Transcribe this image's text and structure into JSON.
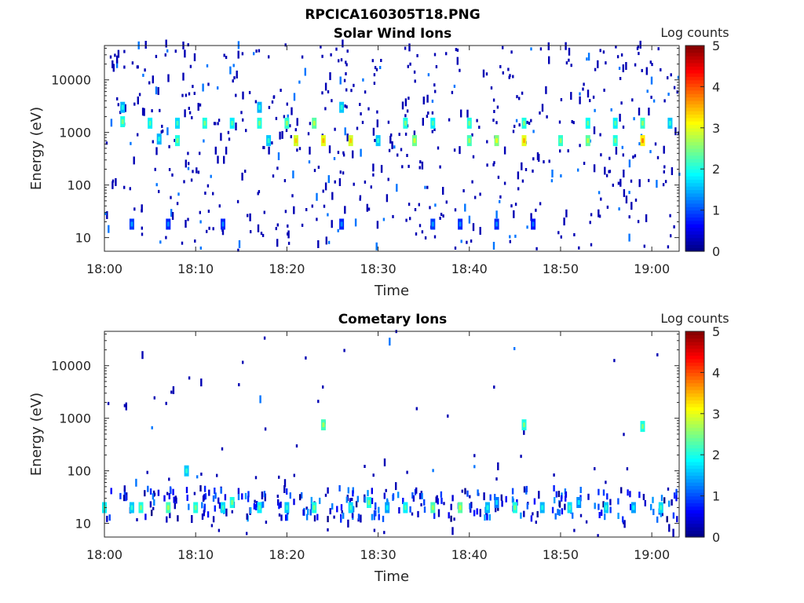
{
  "figure": {
    "title": "RPCICA160305T18.PNG"
  },
  "chart_data": [
    {
      "type": "heatmap",
      "title": "Solar Wind Ions",
      "xlabel": "Time",
      "ylabel": "Energy (eV)",
      "x_ticks": [
        "18:00",
        "18:10",
        "18:20",
        "18:30",
        "18:40",
        "18:50",
        "19:00"
      ],
      "y_ticks": [
        "10",
        "100",
        "1000",
        "10000"
      ],
      "y_scale": "log",
      "xlim": [
        "18:00",
        "19:03"
      ],
      "ylim": [
        5.5,
        45000
      ],
      "colorbar": {
        "label": "Log counts",
        "ticks": [
          "0",
          "1",
          "2",
          "3",
          "4",
          "5"
        ],
        "range": [
          0,
          5
        ],
        "colormap": "jet"
      },
      "hot_spots": [
        {
          "t": "18:02",
          "e": 1600,
          "v": 2.0
        },
        {
          "t": "18:02",
          "e": 3000,
          "v": 1.5
        },
        {
          "t": "18:05",
          "e": 1500,
          "v": 1.8
        },
        {
          "t": "18:06",
          "e": 750,
          "v": 1.5
        },
        {
          "t": "18:08",
          "e": 1500,
          "v": 1.7
        },
        {
          "t": "18:08",
          "e": 700,
          "v": 2.0
        },
        {
          "t": "18:11",
          "e": 1500,
          "v": 2.0
        },
        {
          "t": "18:14",
          "e": 1500,
          "v": 1.8
        },
        {
          "t": "18:17",
          "e": 1500,
          "v": 2.0
        },
        {
          "t": "18:17",
          "e": 3000,
          "v": 1.5
        },
        {
          "t": "18:18",
          "e": 700,
          "v": 1.6
        },
        {
          "t": "18:20",
          "e": 1500,
          "v": 2.1
        },
        {
          "t": "18:21",
          "e": 700,
          "v": 2.9
        },
        {
          "t": "18:23",
          "e": 1500,
          "v": 2.3
        },
        {
          "t": "18:24",
          "e": 700,
          "v": 3.0
        },
        {
          "t": "18:26",
          "e": 3000,
          "v": 1.6
        },
        {
          "t": "18:27",
          "e": 700,
          "v": 2.9
        },
        {
          "t": "18:30",
          "e": 700,
          "v": 1.6
        },
        {
          "t": "18:33",
          "e": 1500,
          "v": 2.0
        },
        {
          "t": "18:34",
          "e": 700,
          "v": 2.4
        },
        {
          "t": "18:36",
          "e": 1500,
          "v": 1.8
        },
        {
          "t": "18:40",
          "e": 1500,
          "v": 2.0
        },
        {
          "t": "18:40",
          "e": 700,
          "v": 2.2
        },
        {
          "t": "18:43",
          "e": 700,
          "v": 2.5
        },
        {
          "t": "18:46",
          "e": 1500,
          "v": 2.0
        },
        {
          "t": "18:46",
          "e": 700,
          "v": 3.0
        },
        {
          "t": "18:50",
          "e": 700,
          "v": 2.1
        },
        {
          "t": "18:53",
          "e": 1500,
          "v": 1.9
        },
        {
          "t": "18:53",
          "e": 700,
          "v": 2.3
        },
        {
          "t": "18:56",
          "e": 1500,
          "v": 1.8
        },
        {
          "t": "18:56",
          "e": 700,
          "v": 2.0
        },
        {
          "t": "18:59",
          "e": 1500,
          "v": 2.1
        },
        {
          "t": "18:59",
          "e": 700,
          "v": 3.2
        },
        {
          "t": "19:02",
          "e": 1500,
          "v": 1.6
        },
        {
          "t": "18:03",
          "e": 18,
          "v": 0.9
        },
        {
          "t": "18:07",
          "e": 18,
          "v": 0.8
        },
        {
          "t": "18:13",
          "e": 18,
          "v": 0.8
        },
        {
          "t": "18:26",
          "e": 18,
          "v": 0.8
        },
        {
          "t": "18:36",
          "e": 18,
          "v": 0.9
        },
        {
          "t": "18:39",
          "e": 18,
          "v": 0.8
        },
        {
          "t": "18:43",
          "e": 18,
          "v": 0.8
        },
        {
          "t": "18:47",
          "e": 18,
          "v": 0.7
        }
      ]
    },
    {
      "type": "heatmap",
      "title": "Cometary Ions",
      "xlabel": "Time",
      "ylabel": "Energy (eV)",
      "x_ticks": [
        "18:00",
        "18:10",
        "18:20",
        "18:30",
        "18:40",
        "18:50",
        "19:00"
      ],
      "y_ticks": [
        "10",
        "100",
        "1000",
        "10000"
      ],
      "y_scale": "log",
      "xlim": [
        "18:00",
        "19:03"
      ],
      "ylim": [
        5.5,
        45000
      ],
      "colorbar": {
        "label": "Log counts",
        "ticks": [
          "0",
          "1",
          "2",
          "3",
          "4",
          "5"
        ],
        "range": [
          0,
          5
        ],
        "colormap": "jet"
      },
      "hot_spots": [
        {
          "t": "18:00",
          "e": 20,
          "v": 1.8
        },
        {
          "t": "18:03",
          "e": 20,
          "v": 1.6
        },
        {
          "t": "18:04",
          "e": 20,
          "v": 2.0
        },
        {
          "t": "18:07",
          "e": 20,
          "v": 2.2
        },
        {
          "t": "18:10",
          "e": 20,
          "v": 2.0
        },
        {
          "t": "18:13",
          "e": 20,
          "v": 1.7
        },
        {
          "t": "18:14",
          "e": 25,
          "v": 2.0
        },
        {
          "t": "18:17",
          "e": 20,
          "v": 1.8
        },
        {
          "t": "18:20",
          "e": 20,
          "v": 1.6
        },
        {
          "t": "18:23",
          "e": 20,
          "v": 2.0
        },
        {
          "t": "18:27",
          "e": 20,
          "v": 1.7
        },
        {
          "t": "18:29",
          "e": 25,
          "v": 2.0
        },
        {
          "t": "18:31",
          "e": 20,
          "v": 1.4
        },
        {
          "t": "18:33",
          "e": 20,
          "v": 1.8
        },
        {
          "t": "18:36",
          "e": 20,
          "v": 2.2
        },
        {
          "t": "18:39",
          "e": 20,
          "v": 2.3
        },
        {
          "t": "18:42",
          "e": 20,
          "v": 1.5
        },
        {
          "t": "18:43",
          "e": 25,
          "v": 1.2
        },
        {
          "t": "18:45",
          "e": 20,
          "v": 2.0
        },
        {
          "t": "18:48",
          "e": 20,
          "v": 1.5
        },
        {
          "t": "18:51",
          "e": 20,
          "v": 1.7
        },
        {
          "t": "18:52",
          "e": 25,
          "v": 1.3
        },
        {
          "t": "18:55",
          "e": 20,
          "v": 1.6
        },
        {
          "t": "18:58",
          "e": 20,
          "v": 1.4
        },
        {
          "t": "19:01",
          "e": 20,
          "v": 1.7
        },
        {
          "t": "18:24",
          "e": 750,
          "v": 2.2
        },
        {
          "t": "18:46",
          "e": 750,
          "v": 2.0
        },
        {
          "t": "18:59",
          "e": 700,
          "v": 2.0
        },
        {
          "t": "18:09",
          "e": 100,
          "v": 1.6
        }
      ]
    }
  ]
}
